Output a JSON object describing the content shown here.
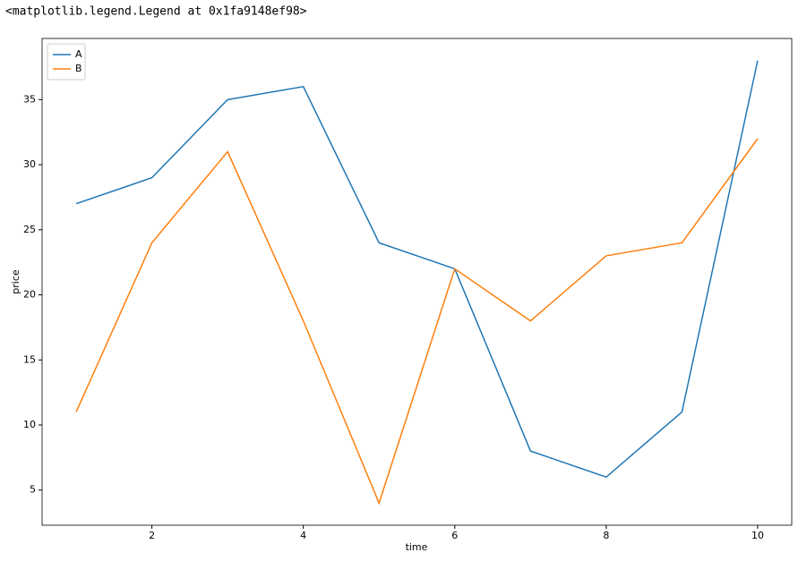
{
  "output": "<matplotlib.legend.Legend at 0x1fa9148ef98>",
  "chart_data": {
    "type": "line",
    "xlabel": "time",
    "ylabel": "price",
    "x": [
      1,
      2,
      3,
      4,
      5,
      6,
      7,
      8,
      9,
      10
    ],
    "series": [
      {
        "name": "A",
        "color": "#1f77b4",
        "values": [
          27,
          29,
          35,
          36,
          24,
          22,
          8,
          6,
          11,
          38
        ]
      },
      {
        "name": "B",
        "color": "#ff7f0e",
        "values": [
          11,
          24,
          31,
          18,
          4,
          22,
          18,
          23,
          24,
          32
        ]
      }
    ],
    "xlim": [
      0.55,
      10.45
    ],
    "xticks": [
      2,
      4,
      6,
      8,
      10
    ],
    "ylim": [
      2.3,
      39.7
    ],
    "yticks": [
      5,
      10,
      15,
      20,
      25,
      30,
      35
    ],
    "grid": false,
    "legend": "upper-left"
  }
}
